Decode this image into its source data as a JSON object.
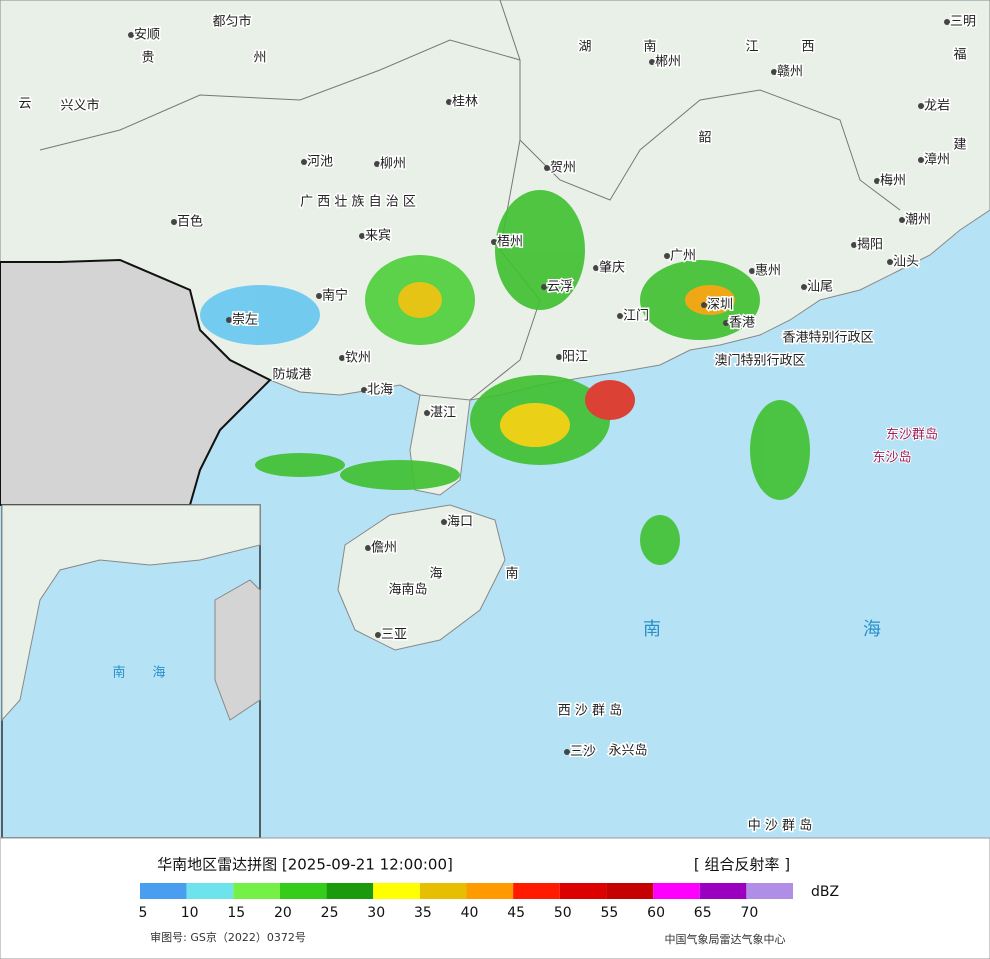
{
  "map": {
    "labels": [
      "安顺",
      "都匀市",
      "贵",
      "州",
      "湖",
      "南",
      "郴州",
      "江",
      "西",
      "赣州",
      "三明",
      "福",
      "龙岩",
      "建",
      "漳州",
      "兴义市",
      "云",
      "桂林",
      "贺州",
      "河池",
      "柳州",
      "韶",
      "梅州",
      "百色",
      "广 西 壮 族 自 治 区",
      "来宾",
      "潮州",
      "揭阳",
      "汕头",
      "梧州",
      "肇庆",
      "广州",
      "惠州",
      "汕尾",
      "云浮",
      "南宁",
      "崇左",
      "江门",
      "深圳",
      "香港",
      "香港特别行政区",
      "澳门特别行政区",
      "阳江",
      "钦州",
      "防城港",
      "北海",
      "湛江",
      "海口",
      "儋州",
      "海南岛",
      "海",
      "南",
      "三亚",
      "西 沙 群 岛",
      "三沙",
      "永兴岛",
      "中 沙 群 岛"
    ],
    "islands": [
      "东沙群岛",
      "东沙岛"
    ],
    "sea": [
      "南",
      "海"
    ],
    "inset_sea": [
      "南",
      "海"
    ]
  },
  "footer": {
    "title": "华南地区雷达拼图 [2025-09-21 12:00:00]",
    "product": "[ 组合反射率 ]",
    "approval": "审图号: GS京（2022）0372号",
    "source": "中国气象局雷达气象中心",
    "scale": {
      "unit": "dBZ",
      "colors": [
        "#4a9ef0",
        "#6ee3ee",
        "#74f046",
        "#36cc1c",
        "#1a9a0c",
        "#ffff00",
        "#e6c000",
        "#ff9a00",
        "#ff1a00",
        "#dd0000",
        "#c40000",
        "#ff00ff",
        "#9a00c0",
        "#b08ee8"
      ],
      "ticks": [
        5,
        10,
        15,
        20,
        25,
        30,
        35,
        40,
        45,
        50,
        55,
        60,
        65,
        70
      ]
    }
  }
}
